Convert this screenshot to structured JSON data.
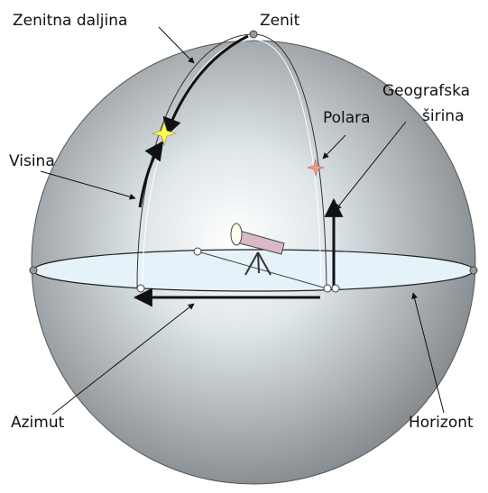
{
  "labels": {
    "zenith_distance": "Zenitna daljina",
    "zenith": "Zenit",
    "latitude": [
      "Geografska",
      "širina"
    ],
    "polaris": "Polara",
    "altitude": "Visina",
    "azimuth": "Azimut",
    "horizon": "Horizont"
  }
}
